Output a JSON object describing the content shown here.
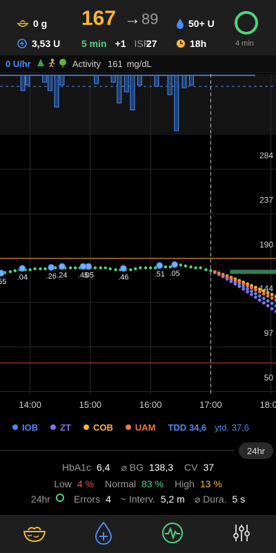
{
  "header": {
    "cob": "0 g",
    "iob": "3,53 U",
    "glucose": "167",
    "trend_arrow": "→",
    "target": "89",
    "delta_time": "5 min",
    "delta": "+1",
    "isf_label": "ISF:",
    "isf_value": "27",
    "reservoir": "50+ U",
    "cannula_age": "18h",
    "loop_status": "4 min"
  },
  "infobar": {
    "temp_basal": "0 U/hr",
    "activity_label": "Activity",
    "activity_value": "161",
    "activity_unit": "mg/dL"
  },
  "chart_data": {
    "type": "scatter",
    "title": "",
    "xlabel": "",
    "ylabel": "",
    "x_ticks": [
      "14:00",
      "15:00",
      "16:00",
      "17:00",
      "18:00"
    ],
    "y_ticks": [
      284,
      237,
      190,
      144,
      97,
      50
    ],
    "y_range": [
      30,
      310
    ],
    "x_range": [
      "13:30",
      "18:05"
    ],
    "now": "17:00",
    "high_threshold": 180,
    "low_threshold": 70,
    "glucose": [
      [
        13.5,
        163
      ],
      [
        13.58,
        165
      ],
      [
        13.67,
        166
      ],
      [
        13.75,
        167
      ],
      [
        13.83,
        168
      ],
      [
        13.92,
        168
      ],
      [
        14.0,
        168
      ],
      [
        14.08,
        169
      ],
      [
        14.17,
        169
      ],
      [
        14.25,
        169
      ],
      [
        14.33,
        169
      ],
      [
        14.42,
        170
      ],
      [
        14.5,
        170
      ],
      [
        14.58,
        170
      ],
      [
        14.67,
        170
      ],
      [
        14.75,
        170
      ],
      [
        14.83,
        170
      ],
      [
        14.92,
        170
      ],
      [
        15.0,
        170
      ],
      [
        15.08,
        170
      ],
      [
        15.17,
        170
      ],
      [
        15.25,
        170
      ],
      [
        15.33,
        169
      ],
      [
        15.42,
        168
      ],
      [
        15.5,
        168
      ],
      [
        15.58,
        168
      ],
      [
        15.67,
        168
      ],
      [
        15.75,
        169
      ],
      [
        15.83,
        170
      ],
      [
        15.92,
        170
      ],
      [
        16.0,
        170
      ],
      [
        16.08,
        170
      ],
      [
        16.17,
        171
      ],
      [
        16.25,
        171
      ],
      [
        16.33,
        171
      ],
      [
        16.42,
        172
      ],
      [
        16.5,
        173
      ],
      [
        16.58,
        172
      ],
      [
        16.67,
        171
      ],
      [
        16.75,
        170
      ],
      [
        16.83,
        170
      ],
      [
        16.92,
        168
      ],
      [
        17.0,
        167
      ]
    ],
    "boluses": [
      {
        "x": 14.97,
        "label": ".05"
      },
      {
        "x": 13.52,
        "label": ".55"
      },
      {
        "x": 13.87,
        "label": ".04"
      },
      {
        "x": 14.35,
        "label": ".26"
      },
      {
        "x": 14.53,
        "label": ".24"
      },
      {
        "x": 14.88,
        "label": ".45"
      },
      {
        "x": 15.55,
        "label": ".46"
      },
      {
        "x": 16.15,
        "label": ".51"
      },
      {
        "x": 16.4,
        "label": ".05"
      }
    ],
    "basal_ticks": [
      {
        "x": 13.88,
        "h": 22
      },
      {
        "x": 13.96,
        "h": 14
      },
      {
        "x": 14.24,
        "h": 10
      },
      {
        "x": 14.33,
        "h": 22
      },
      {
        "x": 14.44,
        "h": 46
      },
      {
        "x": 14.53,
        "h": 14
      },
      {
        "x": 15.1,
        "h": 12
      },
      {
        "x": 15.38,
        "h": 10
      },
      {
        "x": 15.48,
        "h": 40
      },
      {
        "x": 15.6,
        "h": 24
      },
      {
        "x": 15.7,
        "h": 50
      },
      {
        "x": 15.82,
        "h": 14
      },
      {
        "x": 16.1,
        "h": 16
      },
      {
        "x": 16.32,
        "h": 28
      },
      {
        "x": 16.43,
        "h": 80
      },
      {
        "x": 16.56,
        "h": 18
      },
      {
        "x": 16.68,
        "h": 14
      }
    ],
    "predictions": [
      {
        "name": "IOB",
        "color": "#4b8bf5",
        "end": 130
      },
      {
        "name": "ZT",
        "color": "#8b6cf0",
        "end": 124
      },
      {
        "name": "COB",
        "color": "#f5b53c",
        "end": 140
      },
      {
        "name": "UAM",
        "color": "#f0784a",
        "end": 136
      }
    ]
  },
  "legend": {
    "items": [
      {
        "label": "IOB",
        "color": "#4b8bf5"
      },
      {
        "label": "ZT",
        "color": "#8b6cf0"
      },
      {
        "label": "COB",
        "color": "#f5b53c"
      },
      {
        "label": "UAM",
        "color": "#f0784a"
      }
    ],
    "tdd": "TDD 34,6",
    "ytd": "ytd. 37,6",
    "period": "24hr"
  },
  "stats": {
    "hba1c_label": "HbA1c",
    "hba1c": "6,4",
    "avg_label": "⌀ BG",
    "avg": "138,3",
    "cv_label": "CV",
    "cv": "37",
    "low_label": "Low",
    "low": "4 %",
    "normal_label": "Normal",
    "normal": "83 %",
    "high_label": "High",
    "high": "13 %",
    "period": "24hr",
    "errors_label": "Errors",
    "errors": "4",
    "interval_label": "~ Interv.",
    "interval": "5,2 m",
    "duration_label": "⌀ Dura.",
    "duration": "5 s"
  },
  "tabs": [
    {
      "icon": "meal-bowl-icon",
      "active": false
    },
    {
      "icon": "insulin-drop-icon",
      "active": true
    },
    {
      "icon": "heart-rate-icon",
      "active": false
    },
    {
      "icon": "settings-sliders-icon",
      "active": false
    }
  ],
  "colors": {
    "accent": "#4b8bf5",
    "glucose": "#f5b53c",
    "in_range": "#4fd382",
    "low": "#e95a4f"
  }
}
